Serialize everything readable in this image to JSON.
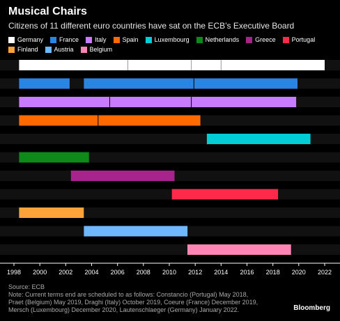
{
  "chart_data": {
    "type": "bar",
    "title": "Musical Chairs",
    "subtitle": "Citizens of 11 different euro countries have sat on the ECB’s Executive Board",
    "xlim": [
      1998,
      2022
    ],
    "x_ticks": [
      "1998",
      "2000",
      "2002",
      "2004",
      "2006",
      "2008",
      "2010",
      "2012",
      "2014",
      "2016",
      "2018",
      "2020",
      "2022"
    ],
    "legend_placement": "top",
    "legend_rows": [
      [
        "Germany",
        "France",
        "Italy",
        "Spain",
        "Luxembourg",
        "Netherlands",
        "Greece",
        "Portugal"
      ],
      [
        "Finland",
        "Austria",
        "Belgium"
      ]
    ],
    "series": [
      {
        "name": "Germany",
        "color": "#ffffff",
        "terms": [
          [
            1998.4,
            2006.8
          ],
          [
            2006.8,
            2011.7
          ],
          [
            2011.7,
            2014.0
          ],
          [
            2014.0,
            2022.0
          ]
        ]
      },
      {
        "name": "France",
        "color": "#2b83e6",
        "terms": [
          [
            1998.4,
            2002.3
          ],
          [
            2003.4,
            2011.9
          ],
          [
            2011.9,
            2019.9
          ]
        ]
      },
      {
        "name": "Italy",
        "color": "#c77bff",
        "terms": [
          [
            1998.4,
            2005.4
          ],
          [
            2005.4,
            2011.7
          ],
          [
            2011.7,
            2019.8
          ]
        ]
      },
      {
        "name": "Spain",
        "color": "#ff6a00",
        "terms": [
          [
            1998.4,
            2004.5
          ],
          [
            2004.5,
            2012.4
          ]
        ]
      },
      {
        "name": "Luxembourg",
        "color": "#00cdd6",
        "terms": [
          [
            2012.9,
            2020.9
          ]
        ]
      },
      {
        "name": "Netherlands",
        "color": "#0e8a1a",
        "terms": [
          [
            1998.4,
            2003.8
          ]
        ]
      },
      {
        "name": "Greece",
        "color": "#a7248d",
        "terms": [
          [
            2002.4,
            2010.4
          ]
        ]
      },
      {
        "name": "Portugal",
        "color": "#ff2a4a",
        "terms": [
          [
            2010.2,
            2018.4
          ]
        ]
      },
      {
        "name": "Finland",
        "color": "#ffa23a",
        "terms": [
          [
            1998.4,
            2003.4
          ]
        ]
      },
      {
        "name": "Austria",
        "color": "#6fb7ff",
        "terms": [
          [
            2003.4,
            2011.4
          ]
        ]
      },
      {
        "name": "Belgium",
        "color": "#ff86b4",
        "terms": [
          [
            2011.4,
            2019.4
          ]
        ]
      }
    ]
  },
  "footer": {
    "source": "Source: ECB",
    "note_lines": [
      "Note: Current terms end are scheduled to as follows: Constancio (Portugal) May 2018,",
      "Praet (Belgium) May 2019, Draghi (Italy) October 2019, Coeure (France) December 2019,",
      "Mersch (Luxembourg) December 2020, Lautenschlaeger (Germany) January 2022."
    ],
    "brand": "Bloomberg"
  }
}
